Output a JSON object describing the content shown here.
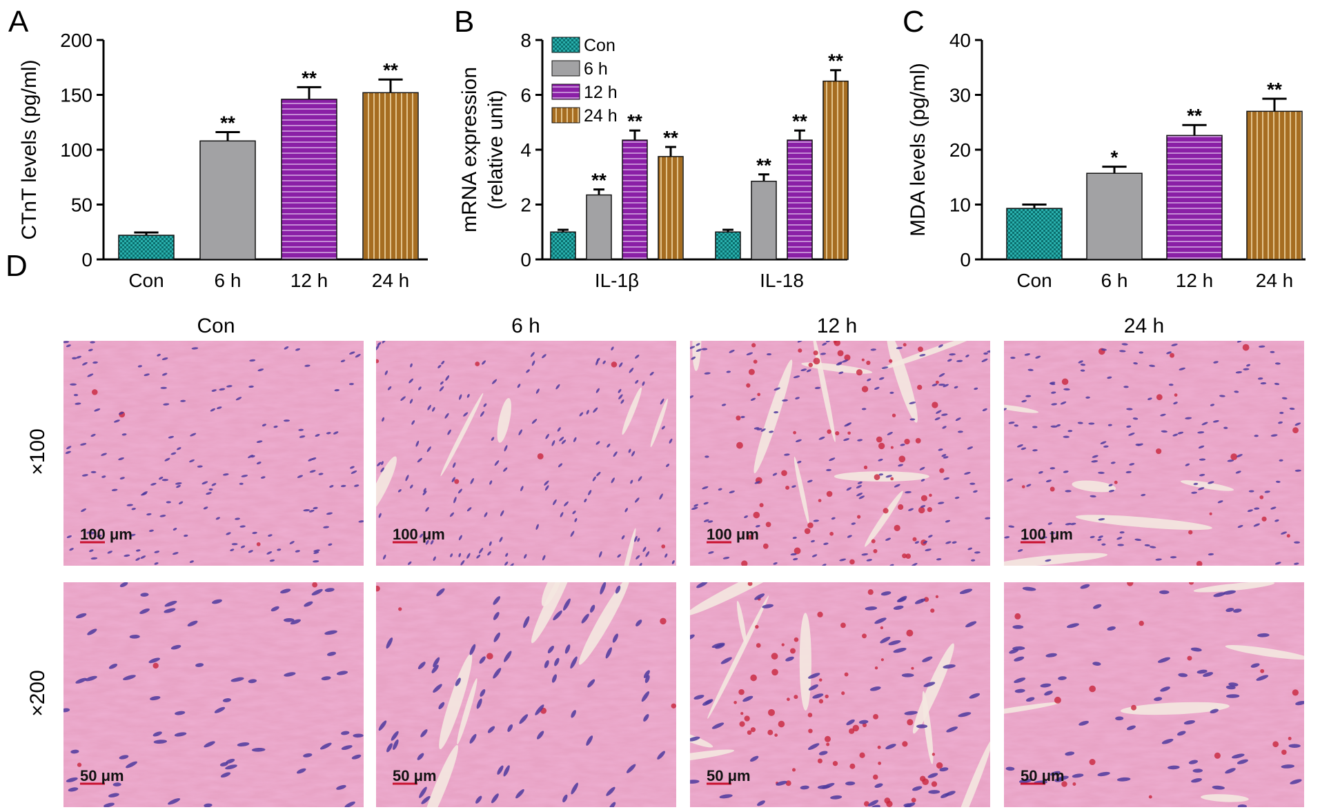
{
  "colors": {
    "con": "#0f8a88",
    "h6": "#a2a2a4",
    "h12": "#8a1fa6",
    "h24": "#a66d21",
    "axis": "#000000",
    "tissue_base": "#e8a3c5",
    "nucleus": "#4d3a9e",
    "blood": "#c8253c",
    "gap": "#f4e8e0"
  },
  "chart_data": [
    {
      "id": "A",
      "type": "bar",
      "panel_label": "A",
      "categories": [
        "Con",
        "6 h",
        "12 h",
        "24 h"
      ],
      "values": [
        22,
        108,
        146,
        152
      ],
      "errors": [
        2.5,
        8,
        11,
        12
      ],
      "significance": [
        "",
        "**",
        "**",
        "**"
      ],
      "ylabel": "CTnT levels (pg/ml)",
      "ylim": [
        0,
        200
      ],
      "yticks": [
        "0",
        "50",
        "100",
        "150",
        "200"
      ],
      "grid": false,
      "legend": "none"
    },
    {
      "id": "B",
      "type": "bar",
      "panel_label": "B",
      "categories": [
        "IL-1β",
        "IL-18"
      ],
      "series": [
        {
          "name": "Con",
          "values": [
            1.0,
            1.0
          ],
          "errors": [
            0.08,
            0.08
          ],
          "significance": [
            "",
            ""
          ]
        },
        {
          "name": "6 h",
          "values": [
            2.35,
            2.85
          ],
          "errors": [
            0.2,
            0.25
          ],
          "significance": [
            "**",
            "**"
          ]
        },
        {
          "name": "12 h",
          "values": [
            4.35,
            4.35
          ],
          "errors": [
            0.35,
            0.35
          ],
          "significance": [
            "**",
            "**"
          ]
        },
        {
          "name": "24 h",
          "values": [
            3.75,
            6.5
          ],
          "errors": [
            0.35,
            0.4
          ],
          "significance": [
            "**",
            "**"
          ]
        }
      ],
      "ylabel_line1": "mRNA expression",
      "ylabel_line2": "(relative unit)",
      "ylim": [
        0,
        8
      ],
      "yticks": [
        "0",
        "2",
        "4",
        "6",
        "8"
      ],
      "grid": false,
      "legend": "top-left"
    },
    {
      "id": "C",
      "type": "bar",
      "panel_label": "C",
      "categories": [
        "Con",
        "6 h",
        "12 h",
        "24 h"
      ],
      "values": [
        9.3,
        15.7,
        22.6,
        27.0
      ],
      "errors": [
        0.7,
        1.2,
        1.9,
        2.3
      ],
      "significance": [
        "",
        "*",
        "**",
        "**"
      ],
      "ylabel": "MDA levels (pg/ml)",
      "ylim": [
        0,
        40
      ],
      "yticks": [
        "0",
        "10",
        "20",
        "30",
        "40"
      ],
      "grid": false,
      "legend": "none"
    }
  ],
  "histology": {
    "panel_label": "D",
    "columns": [
      "Con",
      "6 h",
      "12 h",
      "24 h"
    ],
    "rows": [
      {
        "label": "×100",
        "scale_bar": "100 μm"
      },
      {
        "label": "×200",
        "scale_bar": "50 μm"
      }
    ]
  }
}
